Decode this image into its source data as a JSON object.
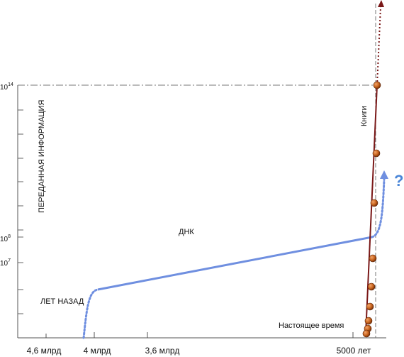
{
  "chart_data": {
    "type": "line",
    "ylabel": "ПЕРЕДАННАЯ ИНФОРМАЦИЯ",
    "x_ticks": [
      {
        "label": "4,6 млрд",
        "x": 4.6
      },
      {
        "label": "4 млрд",
        "x": 4.0
      },
      {
        "label": "3,6 млрд",
        "x": 3.6
      },
      {
        "label": "5000 лет",
        "x": 0
      }
    ],
    "x_unit_label": "ЛЕТ НАЗАД",
    "y_ticks": [
      {
        "label": "10",
        "sup": "14",
        "value": 14
      },
      {
        "label": "10",
        "sup": "8",
        "value": 8
      },
      {
        "label": "10",
        "sup": "7",
        "value": 7
      }
    ],
    "series": [
      {
        "name": "ДНК",
        "color": "#6f8fe0",
        "style": "solid-with-dotted-ends",
        "x_years_ago_bn": [
          4.0,
          3.9,
          0.0
        ],
        "log10_bits": [
          4.5,
          6.5,
          8.0
        ]
      },
      {
        "name": "Книги",
        "color": "#7a1818",
        "style": "solid",
        "points_log10": [
          14.0,
          10.8,
          7.8,
          5.2,
          3.2
        ]
      }
    ],
    "annotations": {
      "present": "Настоящее время",
      "question": "?"
    },
    "colors": {
      "dna": "#6f8fe0",
      "books": "#7a1818",
      "bead": "#c8641e",
      "question": "#4a86d8"
    }
  }
}
